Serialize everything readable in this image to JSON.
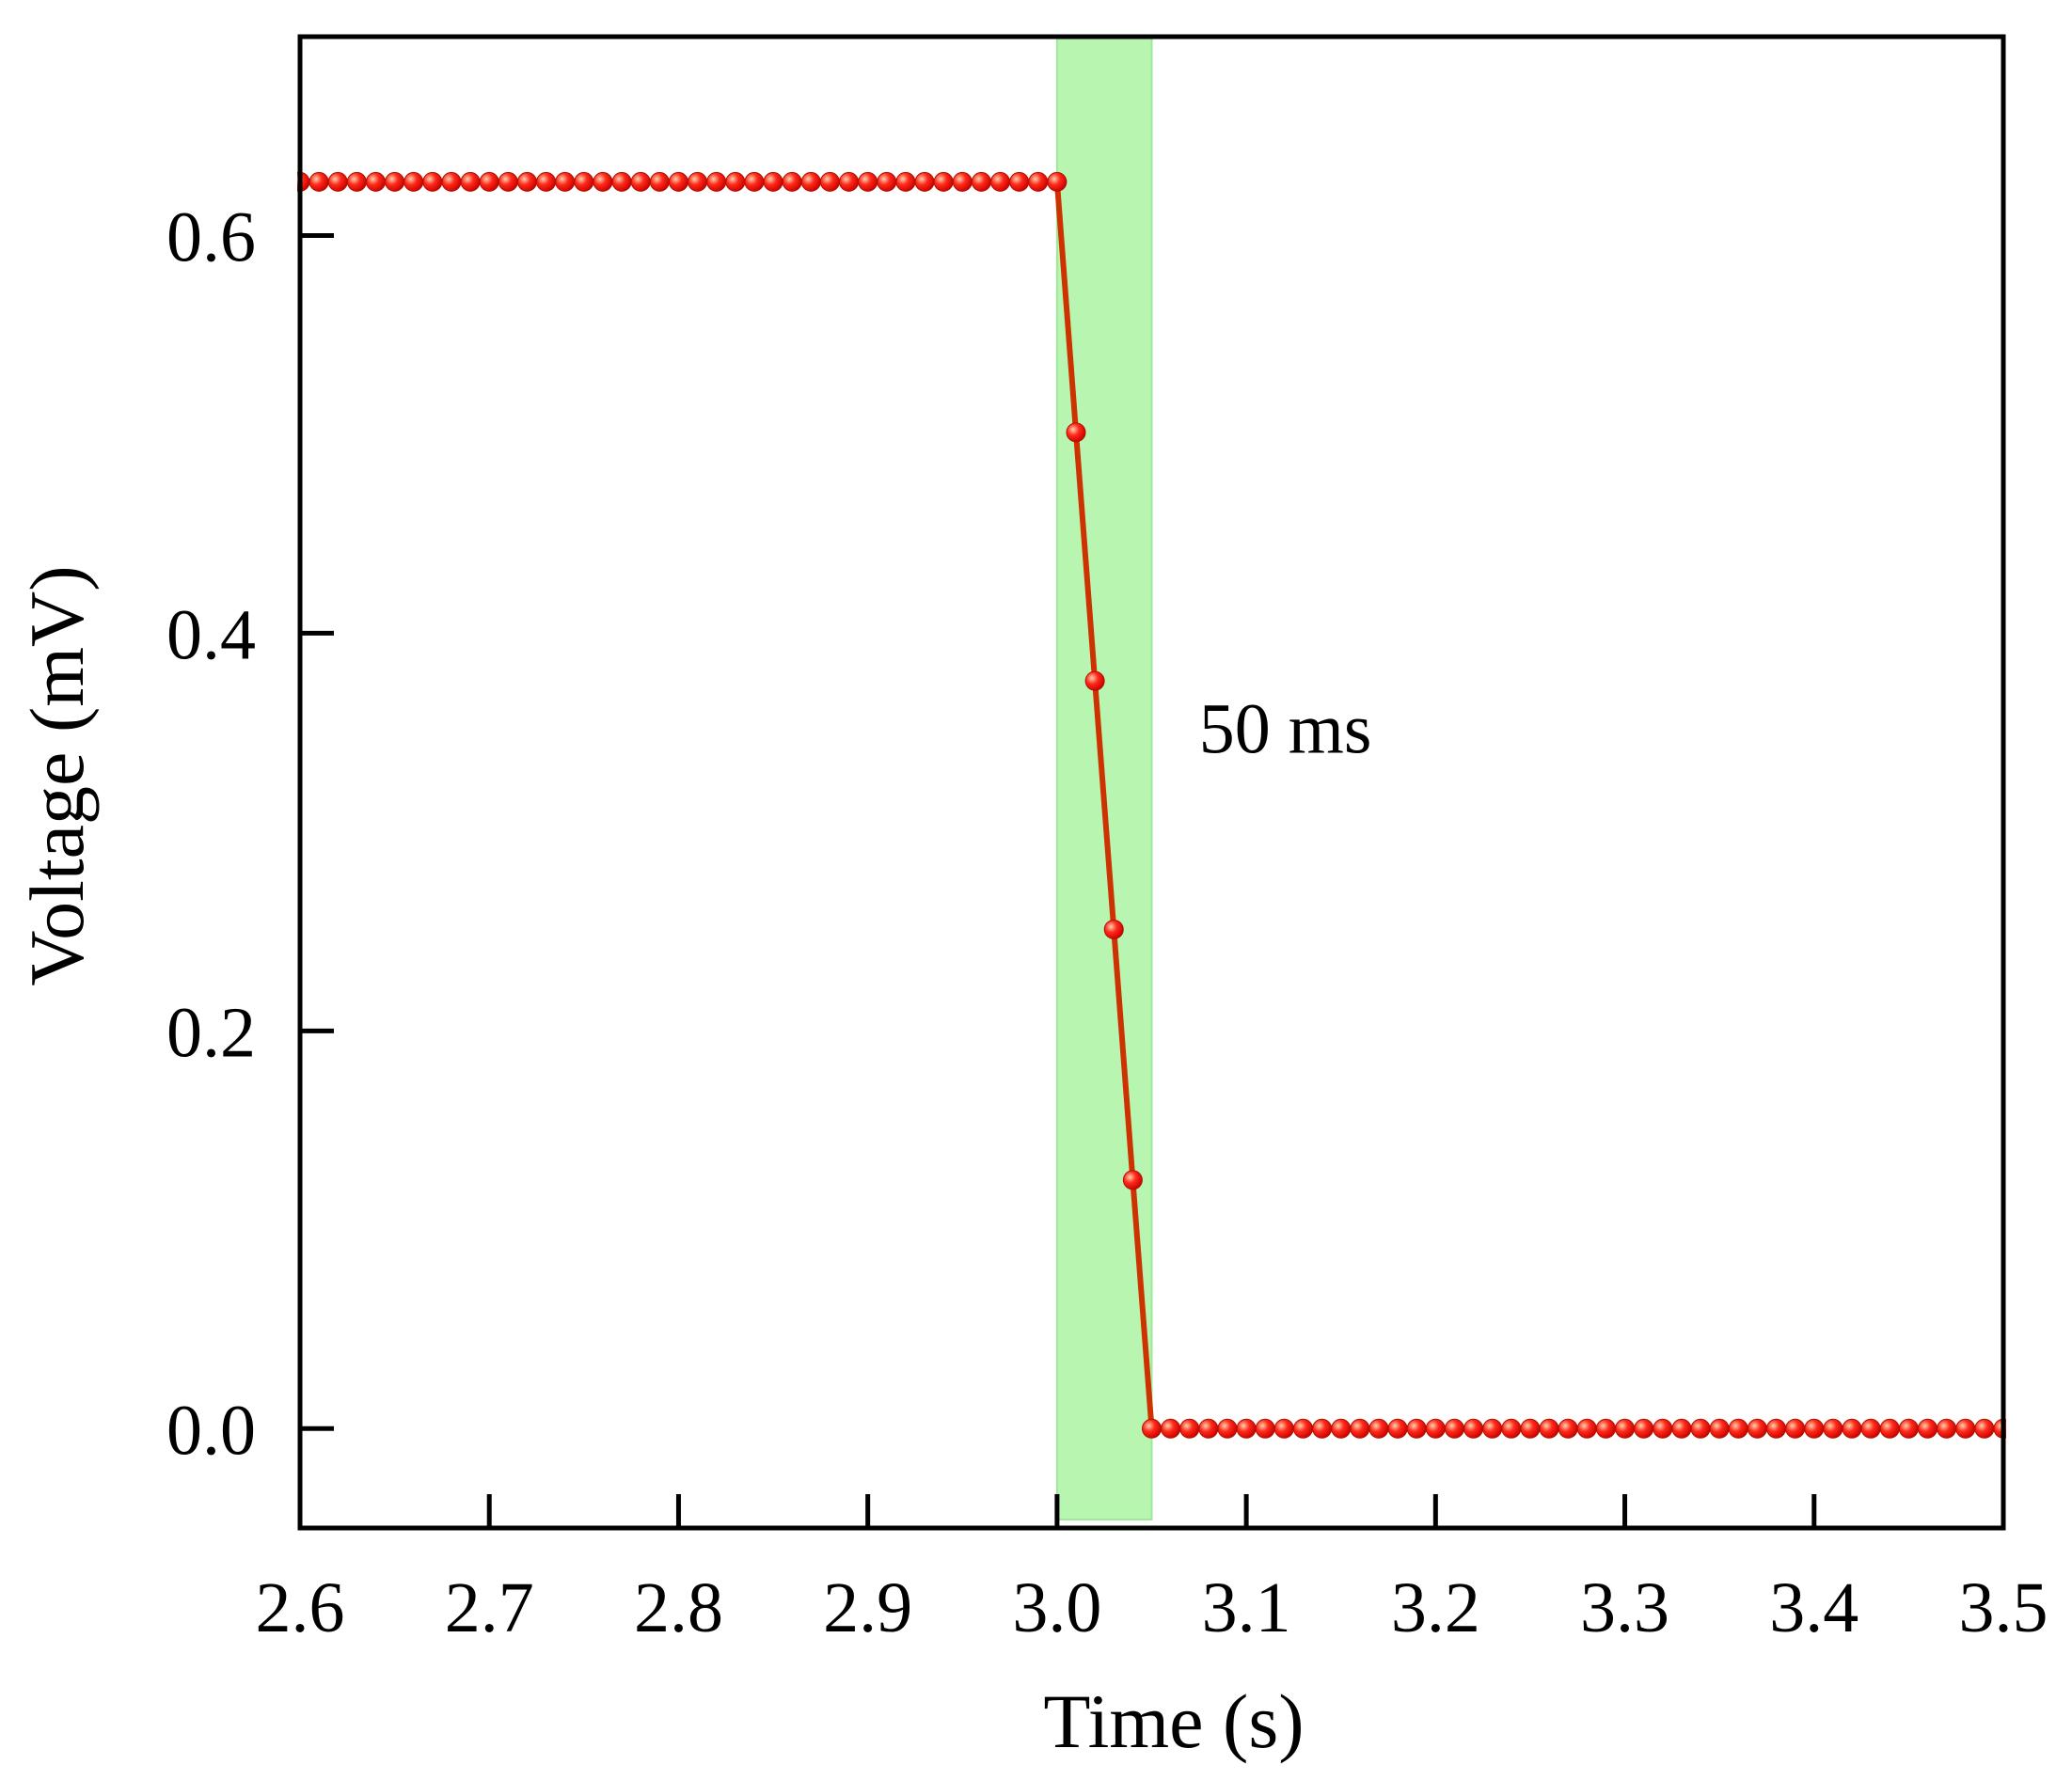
{
  "chart_data": {
    "type": "line",
    "xlabel": "Time (s)",
    "ylabel": "Voltage (mV)",
    "xlim": [
      2.6,
      3.5
    ],
    "ylim": [
      -0.05,
      0.7
    ],
    "xticks": [
      2.6,
      2.7,
      2.8,
      2.9,
      3.0,
      3.1,
      3.2,
      3.3,
      3.4,
      3.5
    ],
    "xtick_labels": [
      "2.6",
      "2.7",
      "2.8",
      "2.9",
      "3.0",
      "3.1",
      "3.2",
      "3.3",
      "3.4",
      "3.5"
    ],
    "yticks": [
      0.0,
      0.2,
      0.4,
      0.6
    ],
    "ytick_labels": [
      "0.0",
      "0.2",
      "0.4",
      "0.6"
    ],
    "grid": false,
    "legend": "none",
    "highlight_band": {
      "x": [
        3.0,
        3.05
      ],
      "color": "#b8f5b0"
    },
    "annotation": {
      "text": "50 ms",
      "x": 3.075,
      "y": 0.34
    },
    "line_color": "#cc3300",
    "marker_color": "#ff1a1a",
    "series": [
      {
        "x": [
          2.6,
          2.61,
          2.62,
          2.63,
          2.64,
          2.65,
          2.66,
          2.67,
          2.68,
          2.69,
          2.7,
          2.71,
          2.72,
          2.73,
          2.74,
          2.75,
          2.76,
          2.77,
          2.78,
          2.79,
          2.8,
          2.81,
          2.82,
          2.83,
          2.84,
          2.85,
          2.86,
          2.87,
          2.88,
          2.89,
          2.9,
          2.91,
          2.92,
          2.93,
          2.94,
          2.95,
          2.96,
          2.97,
          2.98,
          2.99,
          3.0,
          3.01,
          3.02,
          3.03,
          3.04,
          3.05,
          3.06,
          3.07,
          3.08,
          3.09,
          3.1,
          3.11,
          3.12,
          3.13,
          3.14,
          3.15,
          3.16,
          3.17,
          3.18,
          3.19,
          3.2,
          3.21,
          3.22,
          3.23,
          3.24,
          3.25,
          3.26,
          3.27,
          3.28,
          3.29,
          3.3,
          3.31,
          3.32,
          3.33,
          3.34,
          3.35,
          3.36,
          3.37,
          3.38,
          3.39,
          3.4,
          3.41,
          3.42,
          3.43,
          3.44,
          3.45,
          3.46,
          3.47,
          3.48,
          3.49,
          3.5
        ],
        "y": [
          0.627,
          0.627,
          0.627,
          0.627,
          0.627,
          0.627,
          0.627,
          0.627,
          0.627,
          0.627,
          0.627,
          0.627,
          0.627,
          0.627,
          0.627,
          0.627,
          0.627,
          0.627,
          0.627,
          0.627,
          0.627,
          0.627,
          0.627,
          0.627,
          0.627,
          0.627,
          0.627,
          0.627,
          0.627,
          0.627,
          0.627,
          0.627,
          0.627,
          0.627,
          0.627,
          0.627,
          0.627,
          0.627,
          0.627,
          0.627,
          0.627,
          0.501,
          0.376,
          0.251,
          0.125,
          0.0,
          0.0,
          0.0,
          0.0,
          0.0,
          0.0,
          0.0,
          0.0,
          0.0,
          0.0,
          0.0,
          0.0,
          0.0,
          0.0,
          0.0,
          0.0,
          0.0,
          0.0,
          0.0,
          0.0,
          0.0,
          0.0,
          0.0,
          0.0,
          0.0,
          0.0,
          0.0,
          0.0,
          0.0,
          0.0,
          0.0,
          0.0,
          0.0,
          0.0,
          0.0,
          0.0,
          0.0,
          0.0,
          0.0,
          0.0,
          0.0,
          0.0,
          0.0,
          0.0,
          0.0,
          0.0
        ]
      }
    ]
  }
}
